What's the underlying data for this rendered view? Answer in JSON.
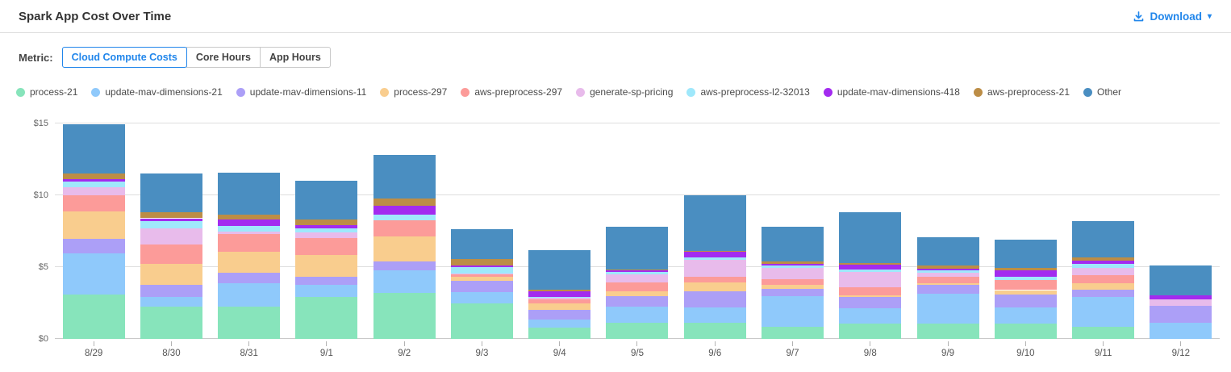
{
  "header": {
    "title": "Spark App Cost Over Time",
    "download_label": "Download",
    "download_caret": "▾",
    "accent_color": "#2186eb"
  },
  "metric": {
    "label": "Metric:",
    "tabs": [
      {
        "label": "Cloud Compute Costs",
        "selected": true
      },
      {
        "label": "Core Hours",
        "selected": false
      },
      {
        "label": "App Hours",
        "selected": false
      }
    ]
  },
  "chart_data": {
    "type": "bar",
    "stacked": true,
    "title": "Spark App Cost Over Time",
    "xlabel": "",
    "ylabel": "",
    "ylim": [
      0,
      15
    ],
    "grid": true,
    "legend_position": "top",
    "yticks": [
      {
        "label": "$0",
        "value": 0
      },
      {
        "label": "$5",
        "value": 5
      },
      {
        "label": "$10",
        "value": 10
      },
      {
        "label": "$15",
        "value": 15
      }
    ],
    "categories": [
      "8/29",
      "8/30",
      "8/31",
      "9/1",
      "9/2",
      "9/3",
      "9/4",
      "9/5",
      "9/6",
      "9/7",
      "9/8",
      "9/9",
      "9/10",
      "9/11",
      "9/12"
    ],
    "series": [
      {
        "name": "process-21",
        "color": "#87e4bb",
        "values": [
          3.1,
          2.25,
          2.25,
          2.9,
          3.2,
          2.45,
          0.8,
          1.1,
          1.15,
          0.85,
          1.05,
          1.05,
          1.05,
          0.85,
          0.0
        ]
      },
      {
        "name": "update-mav-dimensions-21",
        "color": "#8fc9fb",
        "values": [
          2.85,
          0.7,
          1.65,
          0.85,
          1.55,
          0.8,
          0.55,
          1.15,
          1.05,
          2.15,
          1.1,
          2.1,
          1.15,
          2.1,
          1.15
        ]
      },
      {
        "name": "update-mav-dimensions-11",
        "color": "#ac9ff7",
        "values": [
          1.0,
          0.8,
          0.7,
          0.6,
          0.65,
          0.8,
          0.7,
          0.75,
          1.1,
          0.5,
          0.8,
          0.6,
          0.9,
          0.5,
          1.15
        ]
      },
      {
        "name": "process-297",
        "color": "#f9cd8e",
        "values": [
          1.9,
          1.45,
          1.45,
          1.5,
          1.75,
          0.25,
          0.4,
          0.3,
          0.65,
          0.25,
          0.1,
          0.1,
          0.3,
          0.45,
          0.0
        ]
      },
      {
        "name": "aws-preprocess-297",
        "color": "#fc9b99",
        "values": [
          1.15,
          1.4,
          1.25,
          1.2,
          1.1,
          0.2,
          0.3,
          0.65,
          0.4,
          0.4,
          0.55,
          0.5,
          0.7,
          0.55,
          0.0
        ]
      },
      {
        "name": "generate-sp-pricing",
        "color": "#e8bbeb",
        "values": [
          0.55,
          1.1,
          0.15,
          0.35,
          0.0,
          0.05,
          0.1,
          0.55,
          1.15,
          0.8,
          1.05,
          0.25,
          0.0,
          0.5,
          0.45
        ]
      },
      {
        "name": "aws-preprocess-l2-32013",
        "color": "#9fe8fb",
        "values": [
          0.4,
          0.5,
          0.4,
          0.3,
          0.4,
          0.45,
          0.05,
          0.15,
          0.2,
          0.15,
          0.2,
          0.15,
          0.25,
          0.3,
          0.0
        ]
      },
      {
        "name": "update-mav-dimensions-418",
        "color": "#a32bef",
        "values": [
          0.2,
          0.2,
          0.45,
          0.2,
          0.6,
          0.1,
          0.4,
          0.1,
          0.35,
          0.1,
          0.3,
          0.15,
          0.4,
          0.2,
          0.3
        ]
      },
      {
        "name": "aws-preprocess-21",
        "color": "#bc8d46",
        "values": [
          0.35,
          0.4,
          0.35,
          0.4,
          0.55,
          0.45,
          0.15,
          0.1,
          0.1,
          0.2,
          0.15,
          0.2,
          0.2,
          0.25,
          0.0
        ]
      },
      {
        "name": "Other",
        "color": "#4a8ec1",
        "values": [
          3.45,
          2.7,
          2.9,
          2.7,
          3.0,
          2.1,
          2.75,
          2.95,
          3.85,
          2.4,
          3.5,
          2.0,
          1.95,
          2.5,
          2.05
        ]
      }
    ]
  }
}
